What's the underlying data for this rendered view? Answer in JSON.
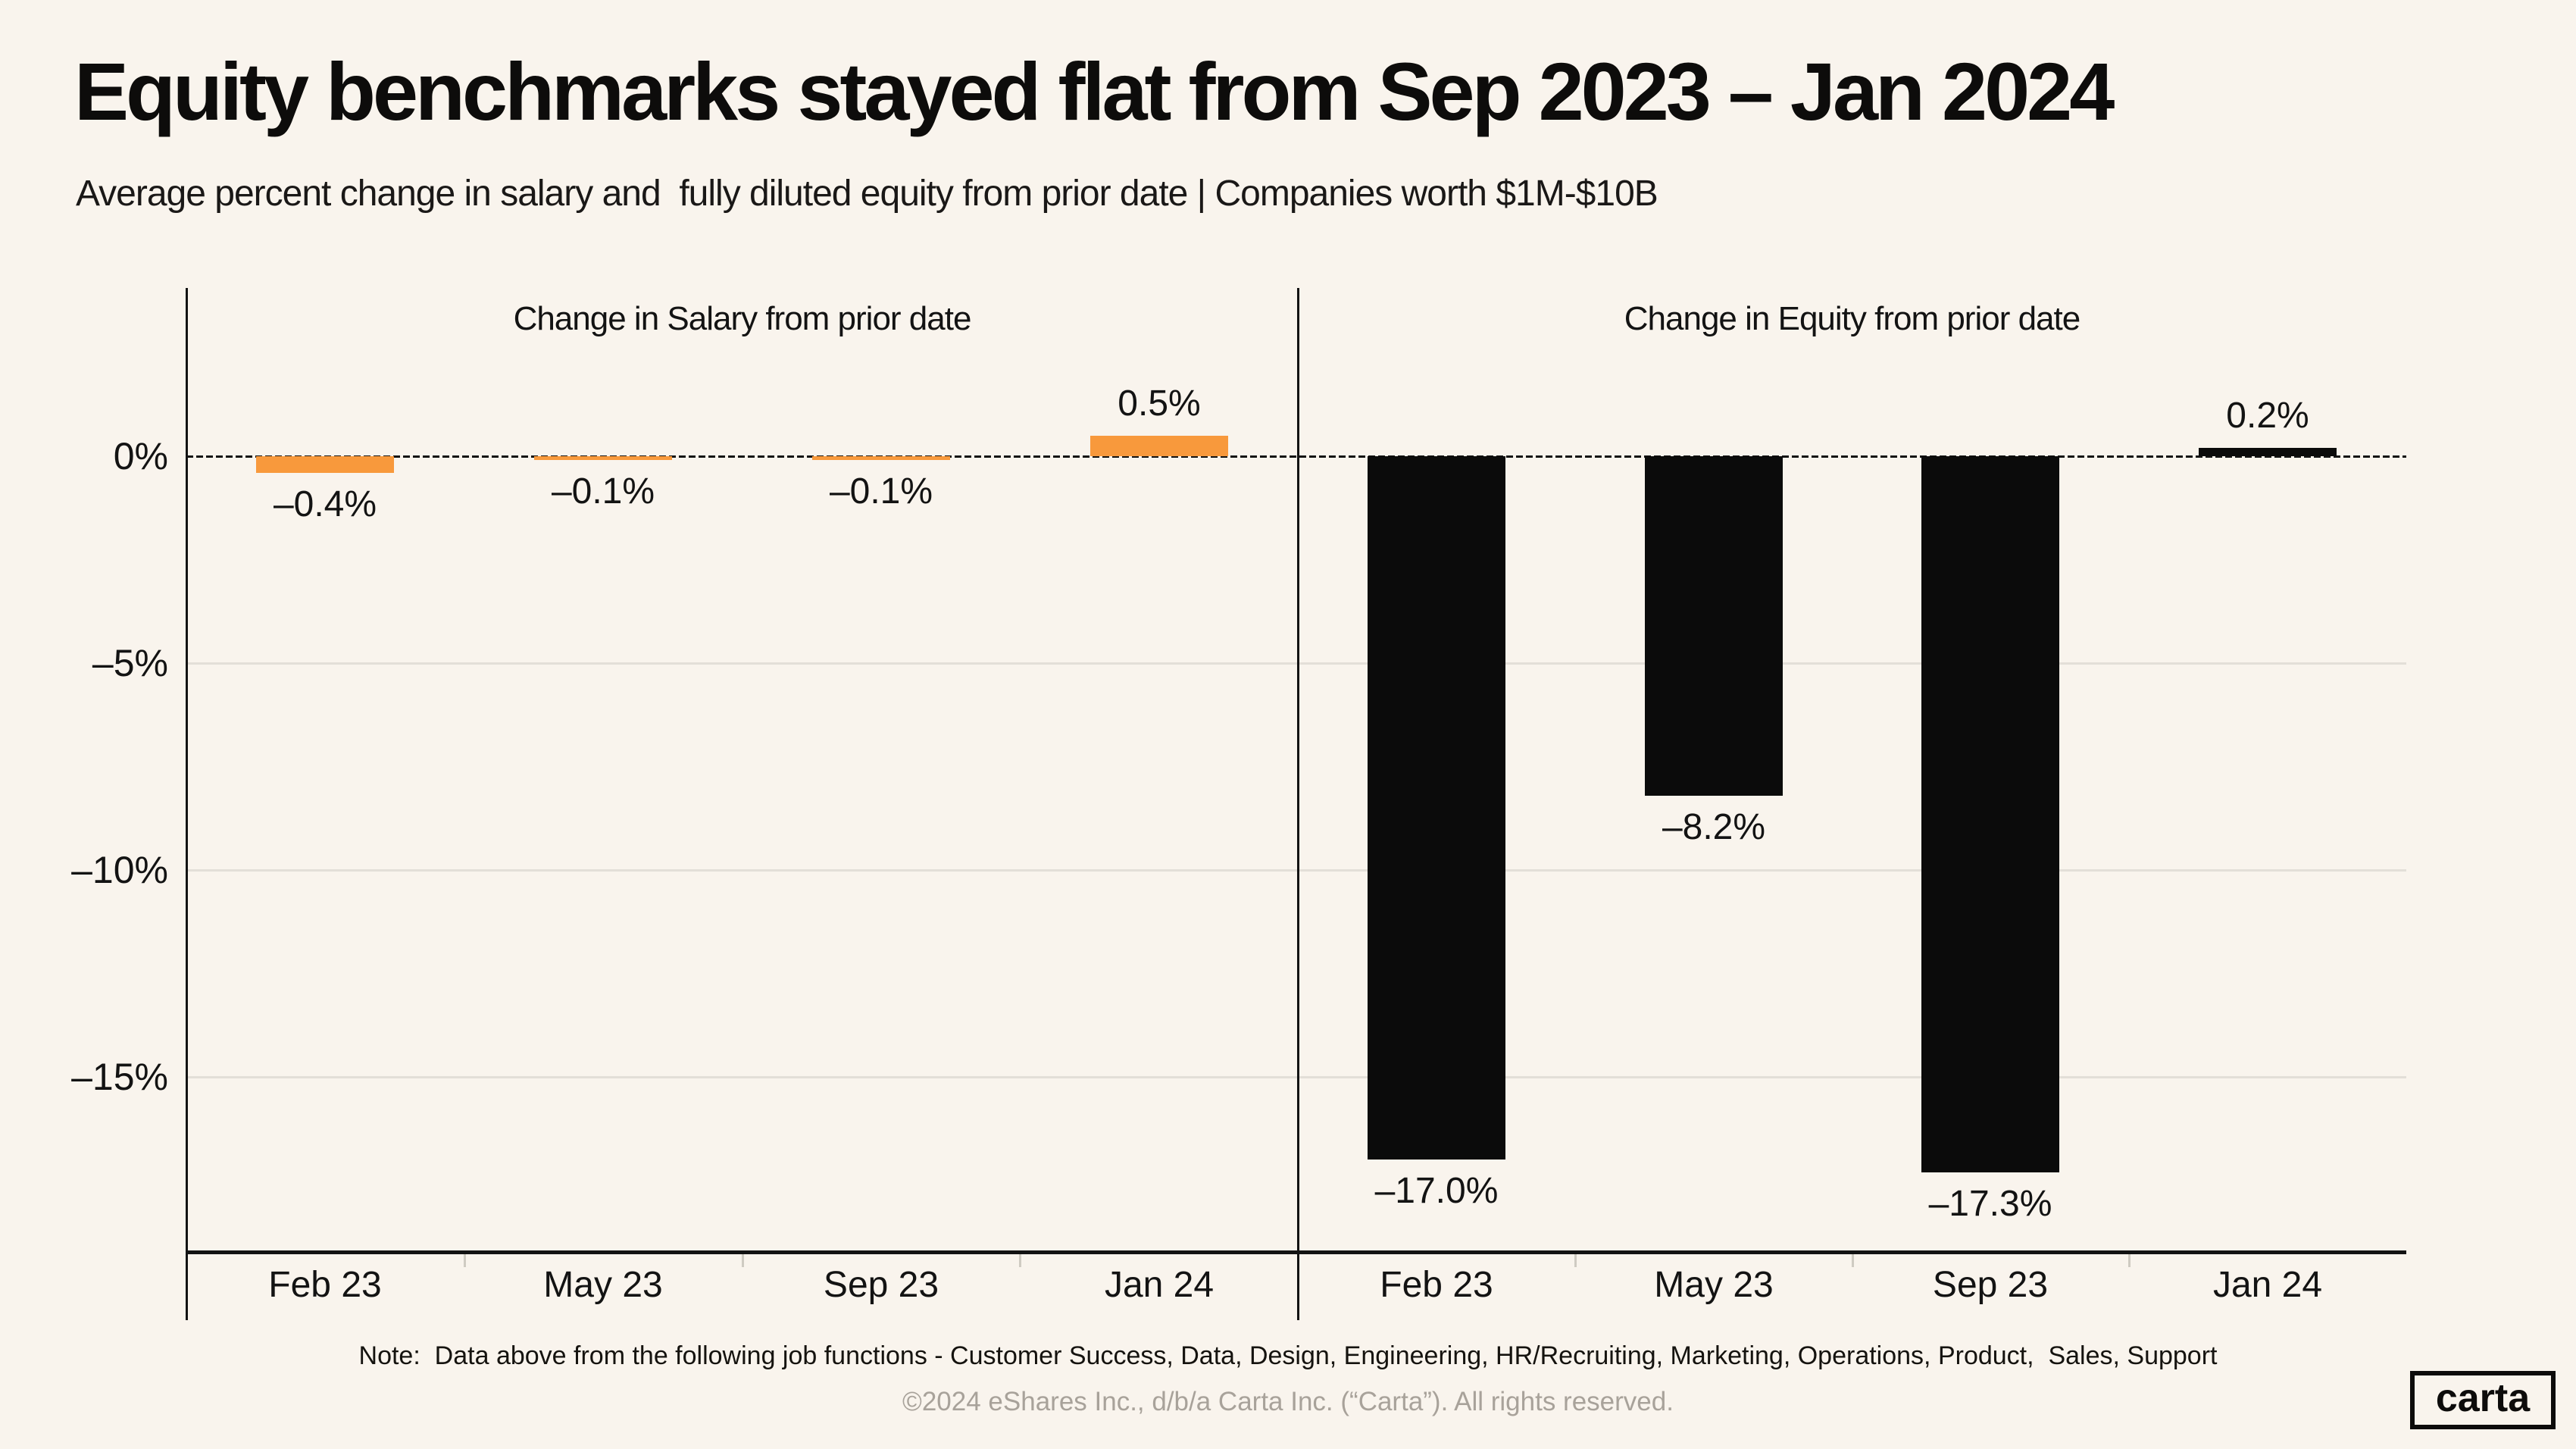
{
  "header": {
    "title": "Equity benchmarks stayed flat from Sep 2023 – Jan 2024",
    "subtitle": "Average percent change in salary and  fully diluted equity from prior date | Companies worth $1M-$10B"
  },
  "chart_data": {
    "type": "bar",
    "unit": "%",
    "categories": [
      "Feb 23",
      "May 23",
      "Sep 23",
      "Jan 24"
    ],
    "series": [
      {
        "name": "Change in Salary from prior date",
        "values": [
          -0.4,
          -0.1,
          -0.1,
          0.5
        ],
        "labels": [
          "–0.4%",
          "–0.1%",
          "–0.1%",
          "0.5%"
        ],
        "color": "#F8993C"
      },
      {
        "name": "Change in Equity from prior date",
        "values": [
          -17.0,
          -8.2,
          -17.3,
          0.2
        ],
        "labels": [
          "–17.0%",
          "–8.2%",
          "–17.3%",
          "0.2%"
        ],
        "color": "#0B0B0B"
      }
    ],
    "yticks": [
      {
        "value": 0,
        "label": "0%"
      },
      {
        "value": -5,
        "label": "–5%"
      },
      {
        "value": -10,
        "label": "–10%"
      },
      {
        "value": -15,
        "label": "–15%"
      }
    ],
    "ylim": [
      4.1,
      -19.2
    ],
    "grid": true,
    "zero_line_style": "dotted",
    "legend_position": "none",
    "layout": "two-panel, shared y axis, vertical divider between panels"
  },
  "footer": {
    "note": "Note:  Data above from the following job functions - Customer Success, Data, Design, Engineering, HR/Recruiting, Marketing, Operations, Product,  Sales, Support",
    "copyright": "©2024 eShares Inc., d/b/a Carta Inc. (“Carta”). All rights reserved.",
    "logo_text": "carta"
  },
  "colors": {
    "background": "#F9F4ED",
    "salary_bar": "#F8993C",
    "equity_bar": "#0B0B0B",
    "gridline": "#E3DFD8",
    "axis": "#131313",
    "boundary_tick": "#CFCBC2",
    "footer_gray": "#A8A29A"
  }
}
